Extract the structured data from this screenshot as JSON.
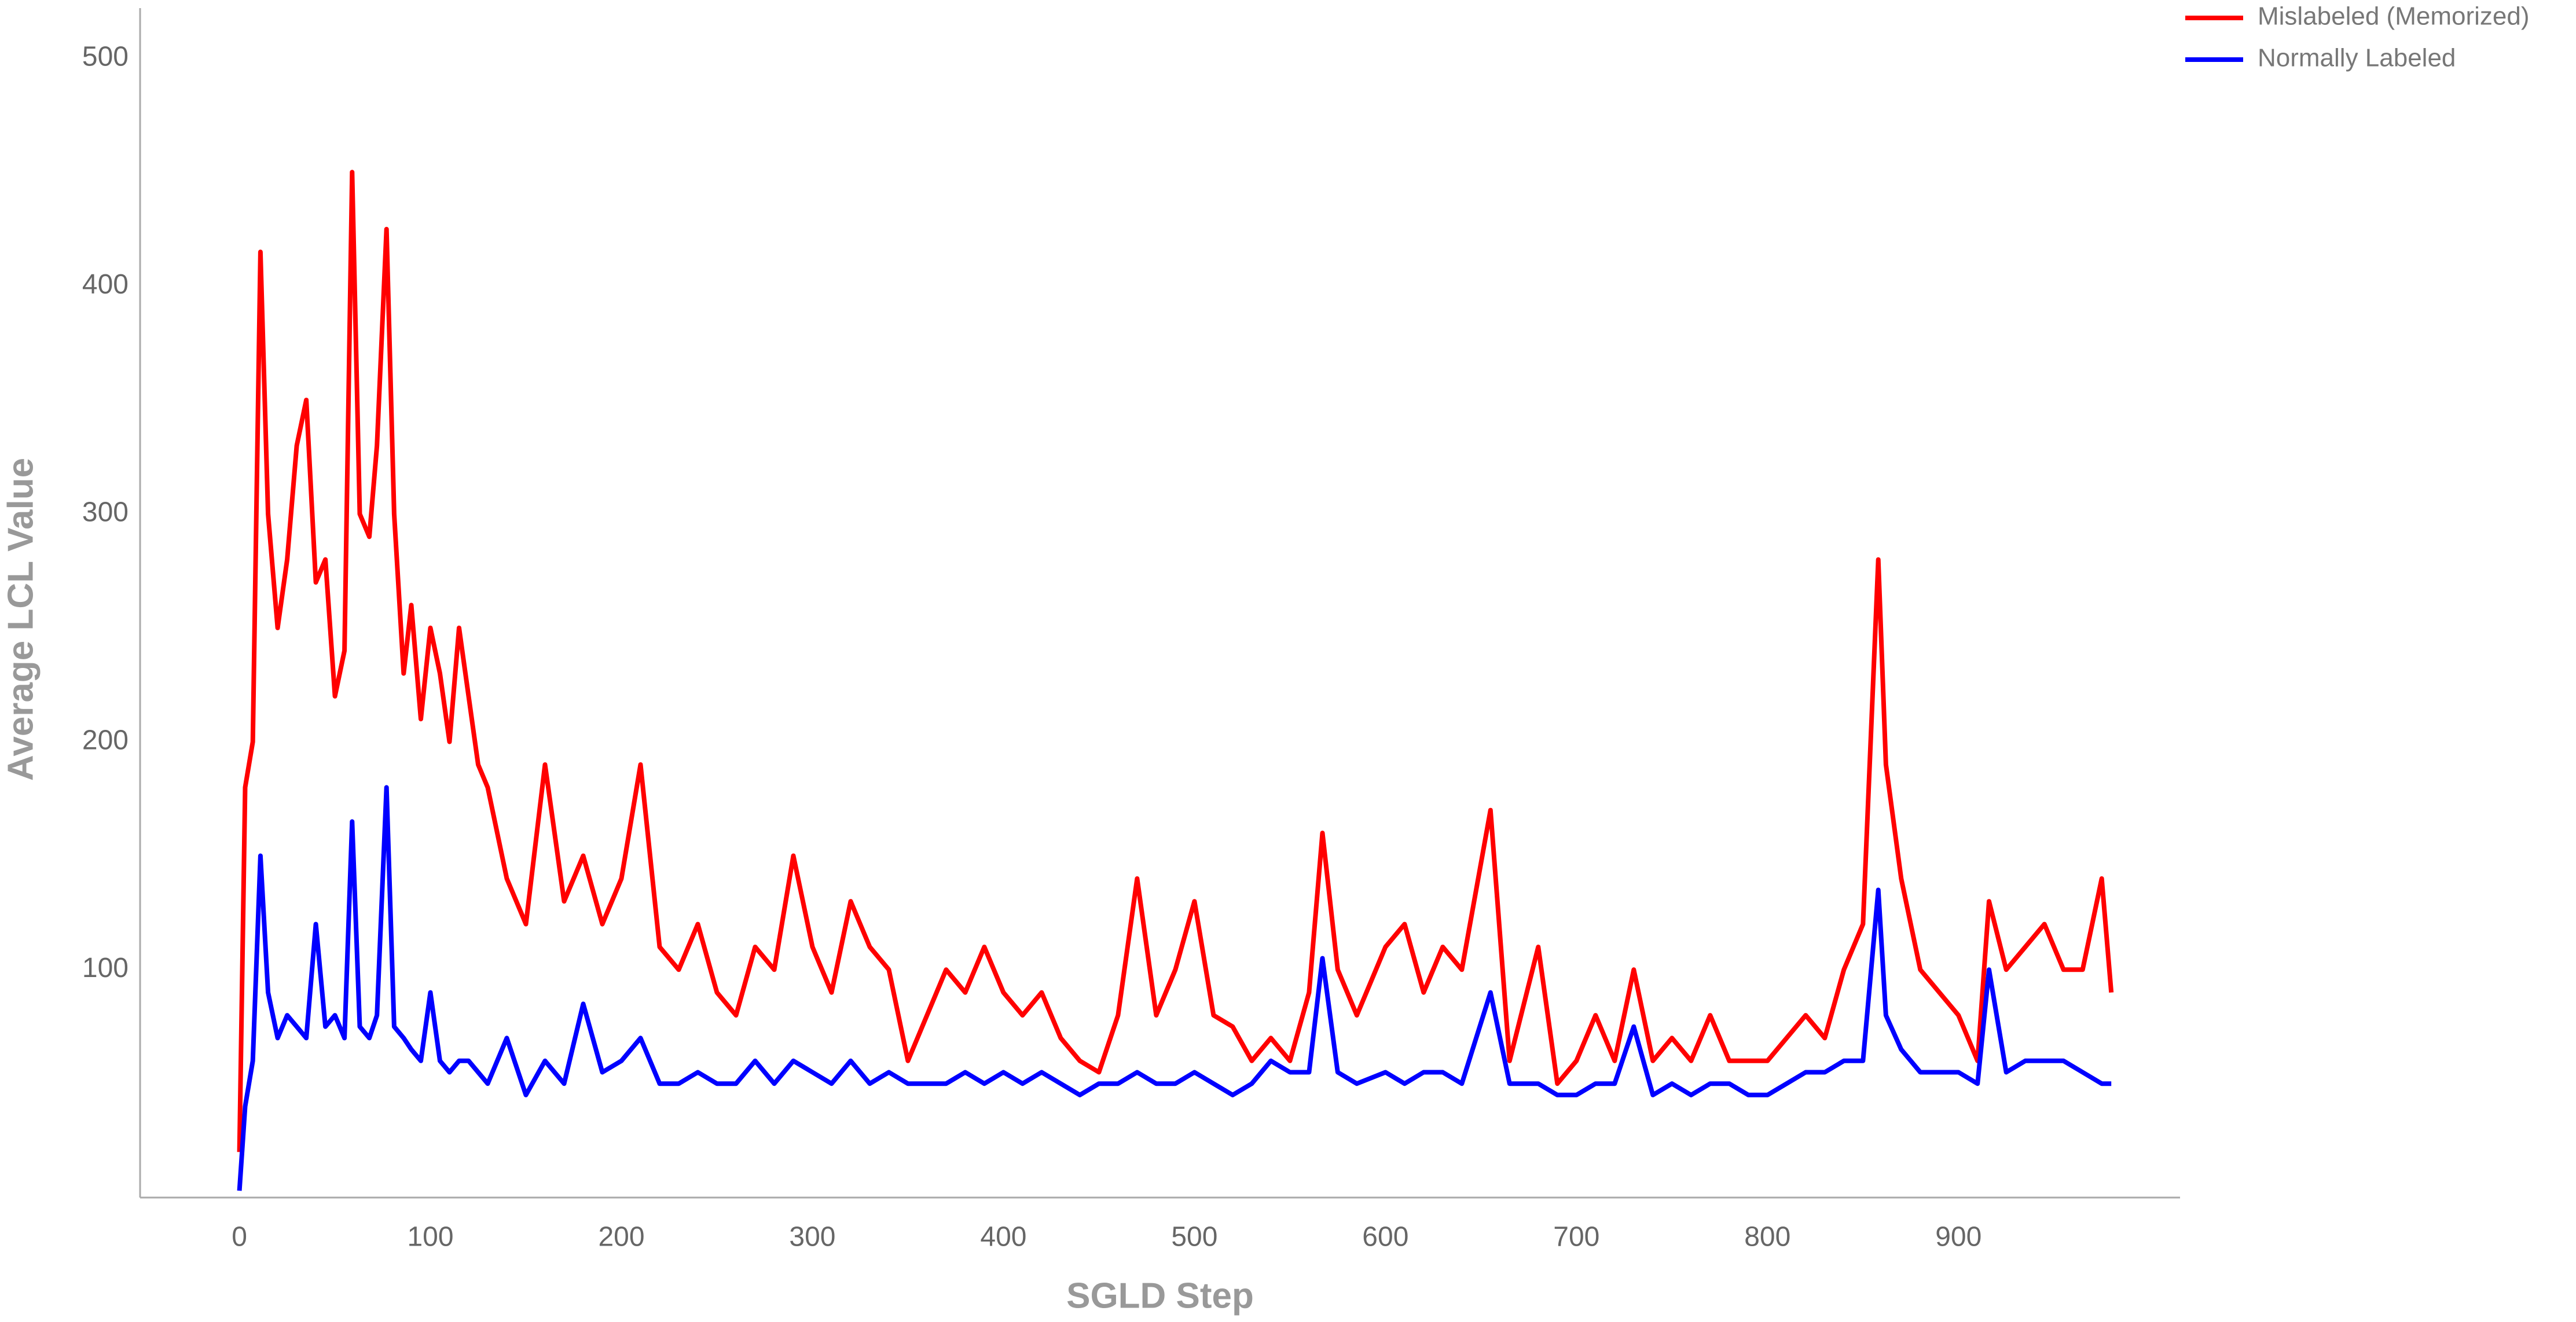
{
  "chart_data": {
    "type": "line",
    "xlabel": "SGLD Step",
    "ylabel": "Average LCL Value",
    "legend": "upper right",
    "grid": false,
    "xlim": [
      -52,
      1016
    ],
    "ylim": [
      0,
      522
    ],
    "xticks": [
      0,
      100,
      200,
      300,
      400,
      500,
      600,
      700,
      800,
      900
    ],
    "yticks": [
      100,
      200,
      300,
      400,
      500
    ],
    "x": [
      0,
      3,
      7,
      11,
      15,
      20,
      25,
      30,
      35,
      40,
      45,
      50,
      55,
      59,
      63,
      68,
      72,
      77,
      81,
      86,
      90,
      95,
      100,
      105,
      110,
      115,
      120,
      125,
      130,
      140,
      150,
      160,
      170,
      180,
      190,
      200,
      210,
      220,
      230,
      240,
      250,
      260,
      270,
      280,
      290,
      300,
      310,
      320,
      330,
      340,
      350,
      360,
      370,
      380,
      390,
      400,
      410,
      420,
      430,
      440,
      450,
      460,
      470,
      480,
      490,
      500,
      510,
      520,
      530,
      540,
      550,
      560,
      567,
      575,
      585,
      600,
      610,
      620,
      630,
      640,
      655,
      665,
      680,
      690,
      700,
      710,
      720,
      730,
      740,
      750,
      760,
      770,
      780,
      790,
      800,
      810,
      820,
      830,
      840,
      850,
      858,
      862,
      870,
      880,
      890,
      900,
      910,
      916,
      925,
      935,
      945,
      955,
      965,
      975,
      980
    ],
    "series": [
      {
        "name": "Mislabeled (Memorized)",
        "color": "#ff0000",
        "values": [
          20,
          180,
          200,
          415,
          300,
          250,
          280,
          330,
          350,
          270,
          280,
          220,
          240,
          450,
          300,
          290,
          330,
          425,
          300,
          230,
          260,
          210,
          250,
          230,
          200,
          250,
          220,
          190,
          180,
          140,
          120,
          190,
          130,
          150,
          120,
          140,
          190,
          110,
          100,
          120,
          90,
          80,
          110,
          100,
          150,
          110,
          90,
          130,
          110,
          100,
          60,
          80,
          100,
          90,
          110,
          90,
          80,
          90,
          70,
          60,
          55,
          80,
          140,
          80,
          100,
          130,
          80,
          75,
          60,
          70,
          60,
          90,
          160,
          100,
          80,
          110,
          120,
          90,
          110,
          100,
          170,
          60,
          110,
          50,
          60,
          80,
          60,
          100,
          60,
          70,
          60,
          80,
          60,
          60,
          60,
          70,
          80,
          70,
          100,
          120,
          280,
          190,
          140,
          100,
          90,
          80,
          60,
          130,
          100,
          110,
          120,
          100,
          100,
          140,
          90
        ]
      },
      {
        "name": "Normally Labeled",
        "color": "#0000ff",
        "values": [
          3,
          40,
          60,
          150,
          90,
          70,
          80,
          75,
          70,
          120,
          75,
          80,
          70,
          165,
          75,
          70,
          80,
          180,
          75,
          70,
          65,
          60,
          90,
          60,
          55,
          60,
          60,
          55,
          50,
          70,
          45,
          60,
          50,
          85,
          55,
          60,
          70,
          50,
          50,
          55,
          50,
          50,
          60,
          50,
          60,
          55,
          50,
          60,
          50,
          55,
          50,
          50,
          50,
          55,
          50,
          55,
          50,
          55,
          50,
          45,
          50,
          50,
          55,
          50,
          50,
          55,
          50,
          45,
          50,
          60,
          55,
          55,
          105,
          55,
          50,
          55,
          50,
          55,
          55,
          50,
          90,
          50,
          50,
          45,
          45,
          50,
          50,
          75,
          45,
          50,
          45,
          50,
          50,
          45,
          45,
          50,
          55,
          55,
          60,
          60,
          135,
          80,
          65,
          55,
          55,
          55,
          50,
          100,
          55,
          60,
          60,
          60,
          55,
          50,
          50
        ]
      }
    ]
  }
}
